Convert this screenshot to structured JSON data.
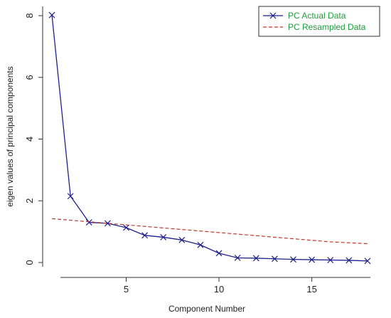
{
  "chart_data": {
    "type": "line",
    "title": "",
    "xlabel": "Component Number",
    "ylabel": "eigen values of principal components",
    "xlim": [
      0.5,
      18.5
    ],
    "ylim": [
      -0.3,
      8.3
    ],
    "x_ticks": [
      5,
      10,
      15
    ],
    "y_ticks": [
      0,
      2,
      4,
      6,
      8
    ],
    "grid": false,
    "legend_position": "top-right",
    "x": [
      1,
      2,
      3,
      4,
      5,
      6,
      7,
      8,
      9,
      10,
      11,
      12,
      13,
      14,
      15,
      16,
      17,
      18
    ],
    "series": [
      {
        "name": "PC  Actual Data",
        "color": "#1f1f8c",
        "line_style": "solid",
        "marker": "x",
        "values": [
          8.02,
          2.15,
          1.3,
          1.27,
          1.13,
          0.88,
          0.82,
          0.73,
          0.57,
          0.3,
          0.15,
          0.14,
          0.12,
          0.1,
          0.09,
          0.08,
          0.07,
          0.05
        ]
      },
      {
        "name": "PC  Resampled Data",
        "color": "#c0392b",
        "line_style": "dashed",
        "marker": "none",
        "values": [
          1.42,
          1.37,
          1.32,
          1.27,
          1.22,
          1.17,
          1.12,
          1.07,
          1.02,
          0.97,
          0.92,
          0.87,
          0.82,
          0.77,
          0.72,
          0.67,
          0.64,
          0.61
        ]
      }
    ],
    "legend_text_color": "#1a9e3a"
  }
}
